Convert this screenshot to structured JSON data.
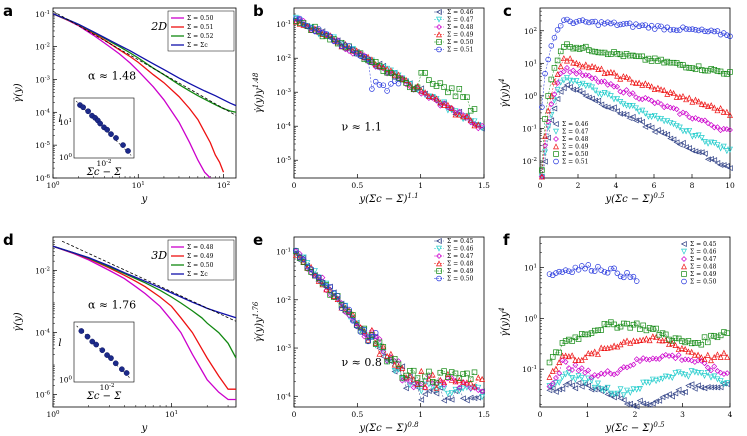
{
  "figure": {
    "panel_labels": [
      "a",
      "b",
      "c",
      "d",
      "e",
      "f"
    ]
  },
  "colors": {
    "magenta": "#cc00cc",
    "red": "#ee1111",
    "green": "#118811",
    "blue": "#1010aa",
    "lightblue": "#6677cc",
    "cyan": "#22cccc",
    "bluemark": "#2233dd",
    "navy": "#334488"
  },
  "chart_data": [
    {
      "panel": "a",
      "type": "line",
      "scale": "loglog",
      "xlim": [
        1,
        140
      ],
      "ylim": [
        1e-06,
        0.15
      ],
      "xticks": [
        "10^0",
        "10^1",
        "10^2"
      ],
      "yticks": [
        "10^-6",
        "10^-5",
        "10^-4",
        "10^-3",
        "10^-2",
        "10^-1"
      ],
      "xlabel": "y",
      "ylabel": "γ̇(y)",
      "annotations": {
        "dim": "2D",
        "exponent": "α ≈ 1.48"
      },
      "reference_line": {
        "slope": -1.48,
        "style": "dashed"
      },
      "series": [
        {
          "name": "Σ = 0.50",
          "color": "magenta",
          "x": [
            1,
            1.5,
            2,
            3,
            4,
            5,
            6,
            8,
            10,
            15,
            20,
            30,
            40,
            50,
            60,
            70
          ],
          "y": [
            0.1,
            0.063,
            0.043,
            0.022,
            0.013,
            0.0085,
            0.006,
            0.0032,
            0.0018,
            0.0006,
            0.00024,
            5e-05,
            1.2e-05,
            3.5e-06,
            1.5e-06,
            1e-06
          ]
        },
        {
          "name": "Σ = 0.51",
          "color": "red",
          "x": [
            1,
            1.5,
            2,
            3,
            4,
            5,
            6,
            8,
            10,
            15,
            20,
            30,
            40,
            50,
            60,
            70,
            80,
            90,
            100
          ],
          "y": [
            0.1,
            0.064,
            0.045,
            0.025,
            0.016,
            0.011,
            0.008,
            0.005,
            0.0033,
            0.0014,
            0.0008,
            0.0003,
            0.00013,
            6e-05,
            2.5e-05,
            1.2e-05,
            5e-06,
            3e-06,
            1.5e-06
          ]
        },
        {
          "name": "Σ = 0.52",
          "color": "green",
          "x": [
            1,
            1.5,
            2,
            3,
            4,
            5,
            6,
            8,
            10,
            15,
            20,
            30,
            40,
            50,
            60,
            80,
            100,
            120,
            140
          ],
          "y": [
            0.1,
            0.065,
            0.047,
            0.027,
            0.018,
            0.013,
            0.01,
            0.0065,
            0.0045,
            0.0022,
            0.0014,
            0.0007,
            0.00045,
            0.00032,
            0.00025,
            0.00017,
            0.00013,
            0.00011,
            0.0001
          ]
        },
        {
          "name": "Σ = Σc",
          "color": "blue",
          "x": [
            1,
            1.5,
            2,
            3,
            4,
            5,
            6,
            8,
            10,
            15,
            20,
            30,
            40,
            50,
            60,
            80,
            100,
            120,
            140
          ],
          "y": [
            0.1,
            0.066,
            0.048,
            0.028,
            0.019,
            0.014,
            0.011,
            0.0075,
            0.0054,
            0.003,
            0.002,
            0.0011,
            0.00075,
            0.00056,
            0.00045,
            0.00032,
            0.00024,
            0.00019,
            0.00016
          ]
        }
      ],
      "inset": {
        "xlabel": "Σc − Σ",
        "ylabel": "l",
        "xtick": "10^-2",
        "yticks": [
          "10^0",
          "10^1"
        ],
        "points": [
          [
            0.0025,
            30
          ],
          [
            0.003,
            26
          ],
          [
            0.004,
            20
          ],
          [
            0.005,
            15
          ],
          [
            0.006,
            13
          ],
          [
            0.007,
            11
          ],
          [
            0.008,
            9
          ],
          [
            0.01,
            7
          ],
          [
            0.012,
            6
          ],
          [
            0.015,
            4.5
          ],
          [
            0.02,
            3.5
          ],
          [
            0.03,
            2.2
          ],
          [
            0.04,
            1.5
          ]
        ]
      }
    },
    {
      "panel": "b",
      "type": "scatter",
      "scale": "semilogy",
      "xlim": [
        0,
        1.5
      ],
      "ylim": [
        3e-06,
        0.3
      ],
      "xticks": [
        "0",
        "0.5",
        "1",
        "1.5"
      ],
      "yticks": [
        "10^-5",
        "10^-4",
        "10^-3",
        "10^-2",
        "10^-1"
      ],
      "xlabel": "y(Σc − Σ)^1.1",
      "ylabel": "γ̇(y)y^1.48",
      "annotations": {
        "exponent": "ν ≈ 1.1"
      },
      "legend": [
        "Σ = 0.46",
        "Σ = 0.47",
        "Σ = 0.48",
        "Σ = 0.49",
        "Σ = 0.50",
        "Σ = 0.51"
      ],
      "series_colors": [
        "navy",
        "cyan",
        "magenta",
        "red",
        "green",
        "bluemark"
      ],
      "series_markers": [
        "tri-left",
        "tri-down",
        "diamond",
        "tri-up",
        "square",
        "circle"
      ],
      "series_xmax": [
        1.5,
        1.5,
        1.5,
        1.48,
        1.45,
        0.85
      ]
    },
    {
      "panel": "c",
      "type": "scatter",
      "scale": "semilogy",
      "xlim": [
        0,
        10
      ],
      "ylim": [
        0.003,
        500
      ],
      "xticks": [
        "0",
        "2",
        "4",
        "6",
        "8",
        "10"
      ],
      "yticks": [
        "10^-2",
        "10^-1",
        "10^0",
        "10^1",
        "10^2"
      ],
      "xlabel": "y(Σc − Σ)^0.5",
      "ylabel": "γ̇(y)y^4",
      "legend": [
        "Σ = 0.46",
        "Σ = 0.47",
        "Σ = 0.48",
        "Σ = 0.49",
        "Σ = 0.50",
        "Σ = 0.51"
      ],
      "plateaus": [
        2.0,
        3.5,
        6.5,
        13,
        35,
        200
      ],
      "tails": [
        0.006,
        0.02,
        0.08,
        0.3,
        5,
        60
      ]
    },
    {
      "panel": "d",
      "type": "line",
      "scale": "loglog",
      "xlim": [
        1,
        35
      ],
      "ylim": [
        4e-07,
        0.12
      ],
      "xticks": [
        "10^0",
        "10^1"
      ],
      "yticks": [
        "10^-6",
        "10^-4",
        "10^-2"
      ],
      "xlabel": "y",
      "ylabel": "γ̇(y)",
      "annotations": {
        "dim": "3D",
        "exponent": "α ≈ 1.76"
      },
      "reference_line": {
        "slope": -1.76,
        "style": "dashed"
      },
      "series": [
        {
          "name": "Σ = 0.48",
          "color": "magenta",
          "x": [
            1,
            1.5,
            2,
            3,
            4,
            5,
            6,
            8,
            10,
            12,
            15,
            18,
            20,
            25,
            30,
            35
          ],
          "y": [
            0.06,
            0.035,
            0.022,
            0.01,
            0.0055,
            0.003,
            0.0018,
            0.0007,
            0.00025,
            0.0001,
            2e-05,
            6e-06,
            3e-06,
            1.2e-06,
            7e-07,
            7e-07
          ]
        },
        {
          "name": "Σ = 0.49",
          "color": "red",
          "x": [
            1,
            1.5,
            2,
            3,
            4,
            5,
            6,
            8,
            10,
            12,
            15,
            18,
            20,
            25,
            30,
            35
          ],
          "y": [
            0.06,
            0.036,
            0.024,
            0.012,
            0.007,
            0.0045,
            0.003,
            0.0014,
            0.0007,
            0.0003,
            0.0001,
            3e-05,
            1.5e-05,
            4e-06,
            1.5e-06,
            1.5e-06
          ]
        },
        {
          "name": "Σ = 0.50",
          "color": "green",
          "x": [
            1,
            1.5,
            2,
            3,
            4,
            5,
            6,
            8,
            10,
            12,
            15,
            18,
            20,
            25,
            30,
            35
          ],
          "y": [
            0.06,
            0.037,
            0.025,
            0.013,
            0.008,
            0.0055,
            0.004,
            0.0023,
            0.0014,
            0.0009,
            0.0005,
            0.0003,
            0.0002,
            0.0001,
            4.5e-05,
            1.5e-05
          ]
        },
        {
          "name": "Σ = Σc",
          "color": "blue",
          "x": [
            1,
            1.5,
            2,
            3,
            4,
            5,
            6,
            8,
            10,
            12,
            15,
            18,
            20,
            25,
            30,
            35
          ],
          "y": [
            0.06,
            0.037,
            0.026,
            0.014,
            0.0085,
            0.006,
            0.0045,
            0.0028,
            0.0019,
            0.0014,
            0.00095,
            0.00072,
            0.0006,
            0.00045,
            0.00036,
            0.0003
          ]
        }
      ],
      "inset": {
        "xlabel": "Σc − Σ",
        "ylabel": "l",
        "xtick": "10^-2",
        "yticks": [
          "10^0"
        ],
        "points": [
          [
            0.003,
            12
          ],
          [
            0.004,
            9
          ],
          [
            0.005,
            7
          ],
          [
            0.006,
            6
          ],
          [
            0.008,
            4.5
          ],
          [
            0.01,
            3.5
          ],
          [
            0.012,
            3
          ],
          [
            0.015,
            2.3
          ],
          [
            0.02,
            1.7
          ],
          [
            0.025,
            1.4
          ]
        ]
      }
    },
    {
      "panel": "e",
      "type": "scatter",
      "scale": "semilogy",
      "xlim": [
        0,
        1.5
      ],
      "ylim": [
        6e-05,
        0.2
      ],
      "xticks": [
        "0",
        "0.5",
        "1",
        "1.5"
      ],
      "yticks": [
        "10^-4",
        "10^-3",
        "10^-2",
        "10^-1"
      ],
      "xlabel": "y(Σc − Σ)^0.8",
      "ylabel": "γ̇(y)y^1.76",
      "annotations": {
        "exponent": "ν ≈ 0.8"
      },
      "legend": [
        "Σ = 0.45",
        "Σ = 0.46",
        "Σ = 0.47",
        "Σ = 0.48",
        "Σ = 0.49",
        "Σ = 0.50"
      ],
      "series_xmax": [
        1.5,
        1.5,
        1.5,
        1.5,
        1.45,
        0.65
      ]
    },
    {
      "panel": "f",
      "type": "scatter",
      "scale": "semilogy",
      "xlim": [
        0,
        4
      ],
      "ylim": [
        0.018,
        40
      ],
      "xticks": [
        "0",
        "1",
        "2",
        "3",
        "4"
      ],
      "yticks": [
        "10^-1",
        "10^0",
        "10^1"
      ],
      "xlabel": "y(Σc − Σ)^0.5",
      "ylabel": "γ̇(y)y^4",
      "legend": [
        "Σ = 0.45",
        "Σ = 0.46",
        "Σ = 0.47",
        "Σ = 0.48",
        "Σ = 0.49",
        "Σ = 0.50"
      ],
      "levels": [
        0.04,
        0.07,
        0.15,
        0.3,
        0.6,
        1.8,
        10
      ]
    }
  ]
}
